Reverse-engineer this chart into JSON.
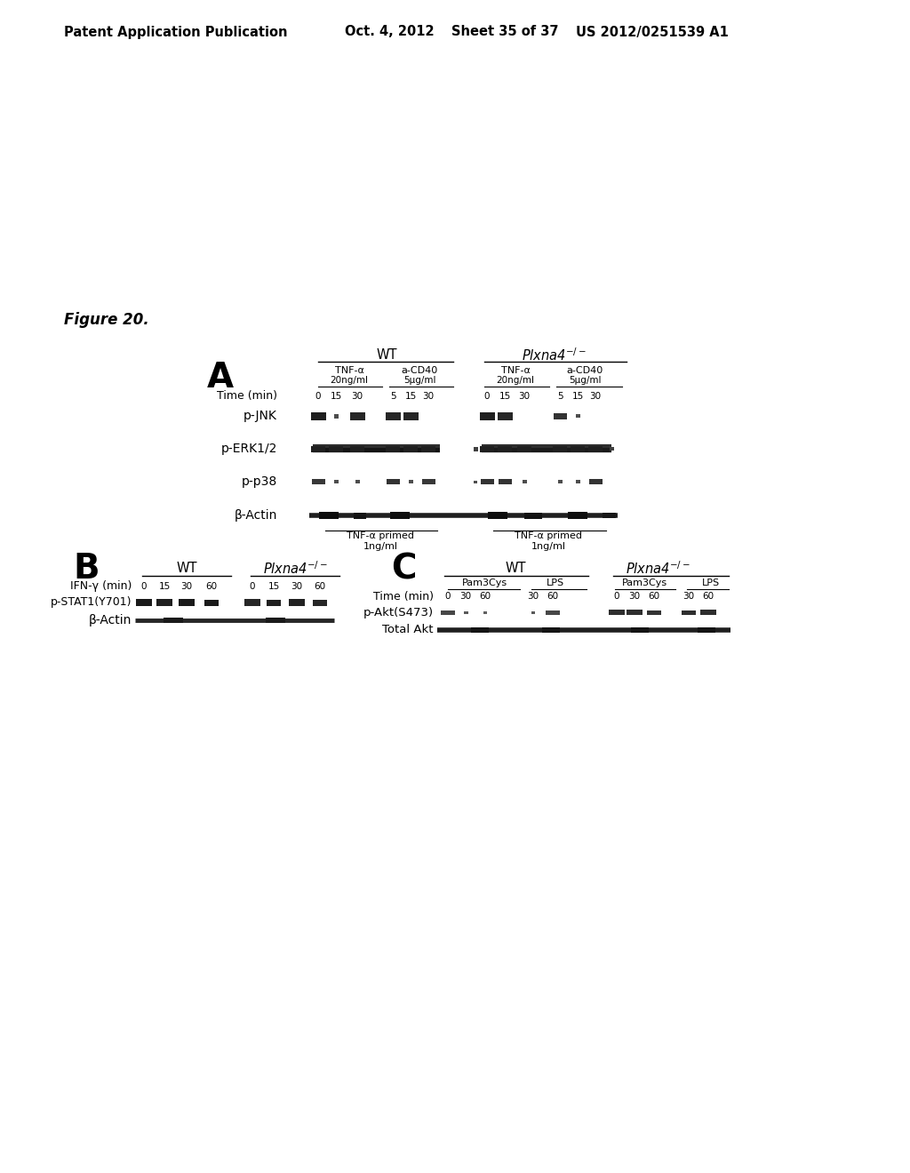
{
  "bg_color": "#ffffff",
  "header_text": "Patent Application Publication",
  "header_date": "Oct. 4, 2012",
  "header_sheet": "Sheet 35 of 37",
  "header_patent": "US 2012/0251539 A1",
  "figure_label": "Figure 20.",
  "panel_A_label": "A",
  "panel_B_label": "B",
  "panel_C_label": "C",
  "wt_label": "WT",
  "plxna4_label": "Plxna4",
  "tnfa_label": "TNF-α",
  "acd40_label": "a-CD40",
  "tnfa_conc": "20ng/ml",
  "acd40_conc": "5μg/ml",
  "time_label": "Time (min)",
  "pjnk_label": "p-JNK",
  "perk_label": "p-ERK1/2",
  "pp38_label": "p-p38",
  "bactin_label": "β-Actin",
  "footer_text": "TNF-α primed\n1ng/ml",
  "ifng_label": "IFN-γ (min)",
  "pstat_label": "p-STAT1(Y701)",
  "pam3_label": "Pam3Cys",
  "lps_label": "LPS",
  "pakt_label": "p-Akt(S473)",
  "totalakt_label": "Total Akt"
}
